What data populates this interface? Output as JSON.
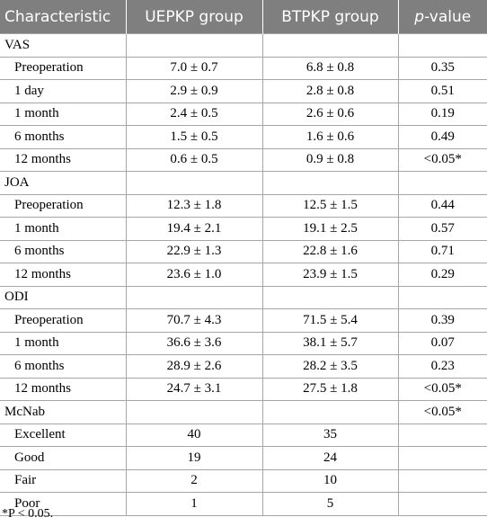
{
  "table": {
    "headers": [
      "Characteristic",
      "UEPKP group",
      "BTPKP group",
      "-value"
    ],
    "p_letter": "p",
    "rows": [
      {
        "type": "group",
        "label": "VAS",
        "c1": "",
        "c2": "",
        "c3": ""
      },
      {
        "type": "sub",
        "label": "Preoperation",
        "c1": "7.0 ± 0.7",
        "c2": "6.8 ± 0.8",
        "c3": "0.35"
      },
      {
        "type": "sub",
        "label": "1 day",
        "c1": "2.9 ± 0.9",
        "c2": "2.8 ± 0.8",
        "c3": "0.51"
      },
      {
        "type": "sub",
        "label": "1 month",
        "c1": "2.4 ± 0.5",
        "c2": "2.6 ± 0.6",
        "c3": "0.19"
      },
      {
        "type": "sub",
        "label": "6 months",
        "c1": "1.5 ± 0.5",
        "c2": "1.6 ± 0.6",
        "c3": "0.49"
      },
      {
        "type": "sub",
        "label": "12 months",
        "c1": "0.6 ± 0.5",
        "c2": "0.9 ± 0.8",
        "c3": "<0.05*"
      },
      {
        "type": "group",
        "label": "JOA",
        "c1": "",
        "c2": "",
        "c3": ""
      },
      {
        "type": "sub",
        "label": "Preoperation",
        "c1": "12.3 ± 1.8",
        "c2": "12.5 ± 1.5",
        "c3": "0.44"
      },
      {
        "type": "sub",
        "label": "1 month",
        "c1": "19.4 ± 2.1",
        "c2": "19.1 ± 2.5",
        "c3": "0.57"
      },
      {
        "type": "sub",
        "label": "6 months",
        "c1": "22.9 ± 1.3",
        "c2": "22.8 ± 1.6",
        "c3": "0.71"
      },
      {
        "type": "sub",
        "label": "12 months",
        "c1": "23.6 ± 1.0",
        "c2": "23.9 ± 1.5",
        "c3": "0.29"
      },
      {
        "type": "group",
        "label": "ODI",
        "c1": "",
        "c2": "",
        "c3": ""
      },
      {
        "type": "sub",
        "label": "Preoperation",
        "c1": "70.7 ± 4.3",
        "c2": "71.5 ± 5.4",
        "c3": "0.39"
      },
      {
        "type": "sub",
        "label": "1 month",
        "c1": "36.6 ± 3.6",
        "c2": "38.1 ± 5.7",
        "c3": "0.07"
      },
      {
        "type": "sub",
        "label": "6 months",
        "c1": "28.9 ± 2.6",
        "c2": "28.2 ± 3.5",
        "c3": "0.23"
      },
      {
        "type": "sub",
        "label": "12 months",
        "c1": "24.7 ± 3.1",
        "c2": "27.5 ± 1.8",
        "c3": "<0.05*"
      },
      {
        "type": "group",
        "label": "McNab",
        "c1": "",
        "c2": "",
        "c3": "<0.05*"
      },
      {
        "type": "sub",
        "label": "Excellent",
        "c1": "40",
        "c2": "35",
        "c3": ""
      },
      {
        "type": "sub",
        "label": "Good",
        "c1": "19",
        "c2": "24",
        "c3": ""
      },
      {
        "type": "sub",
        "label": "Fair",
        "c1": "2",
        "c2": "10",
        "c3": ""
      },
      {
        "type": "sub",
        "label": "Poor",
        "c1": "1",
        "c2": "5",
        "c3": ""
      }
    ]
  },
  "footnote": "*P < 0.05.",
  "colors": {
    "header_bg": "#7f7f7f",
    "header_text": "#ffffff",
    "grid": "#a6a6a6"
  }
}
